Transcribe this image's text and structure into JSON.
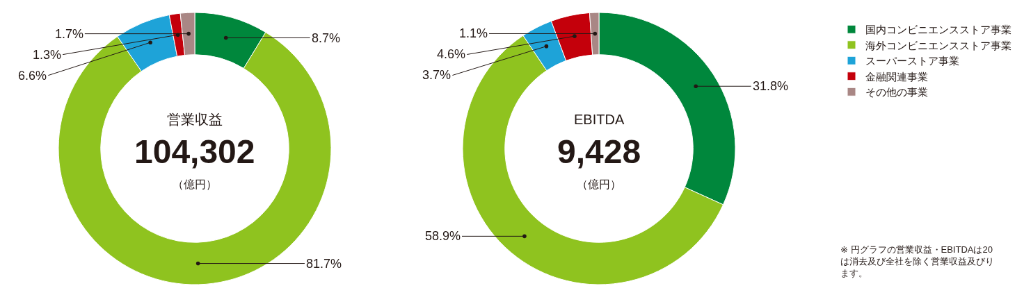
{
  "chart_data": [
    {
      "type": "donut",
      "title": "営業収益",
      "subtitle": "104,302",
      "annotations": [
        "（億円）"
      ],
      "categories": [
        "国内コンビニエンスストア事業",
        "海外コンビニエンスストア事業",
        "スーパーストア事業",
        "金融関連事業",
        "その他の事業"
      ],
      "values": [
        8.7,
        81.7,
        6.6,
        1.3,
        1.7
      ],
      "colors": [
        "#00873c",
        "#8fc31f",
        "#1ea3d8",
        "#c4000b",
        "#a98785"
      ],
      "value_labels": [
        "8.7%",
        "81.7%",
        "6.6%",
        "1.3%",
        "1.7%"
      ],
      "legend": "right"
    },
    {
      "type": "donut",
      "title": "EBITDA",
      "subtitle": "9,428",
      "annotations": [
        "（億円）",
        "※ 円グラフの営業収益・EBITDAは20は消去及び全社を除く営業収益及びります。"
      ],
      "categories": [
        null,
        null,
        null,
        null,
        null
      ],
      "values": [
        31.8,
        58.9,
        3.7,
        4.6,
        1.1
      ],
      "colors": [
        "#00873c",
        "#8fc31f",
        "#1ea3d8",
        "#c4000b",
        "#a98785"
      ],
      "value_labels": [
        "31.8%",
        "58.9%",
        "3.7%",
        "4.6%",
        "1.1%"
      ]
    }
  ]
}
